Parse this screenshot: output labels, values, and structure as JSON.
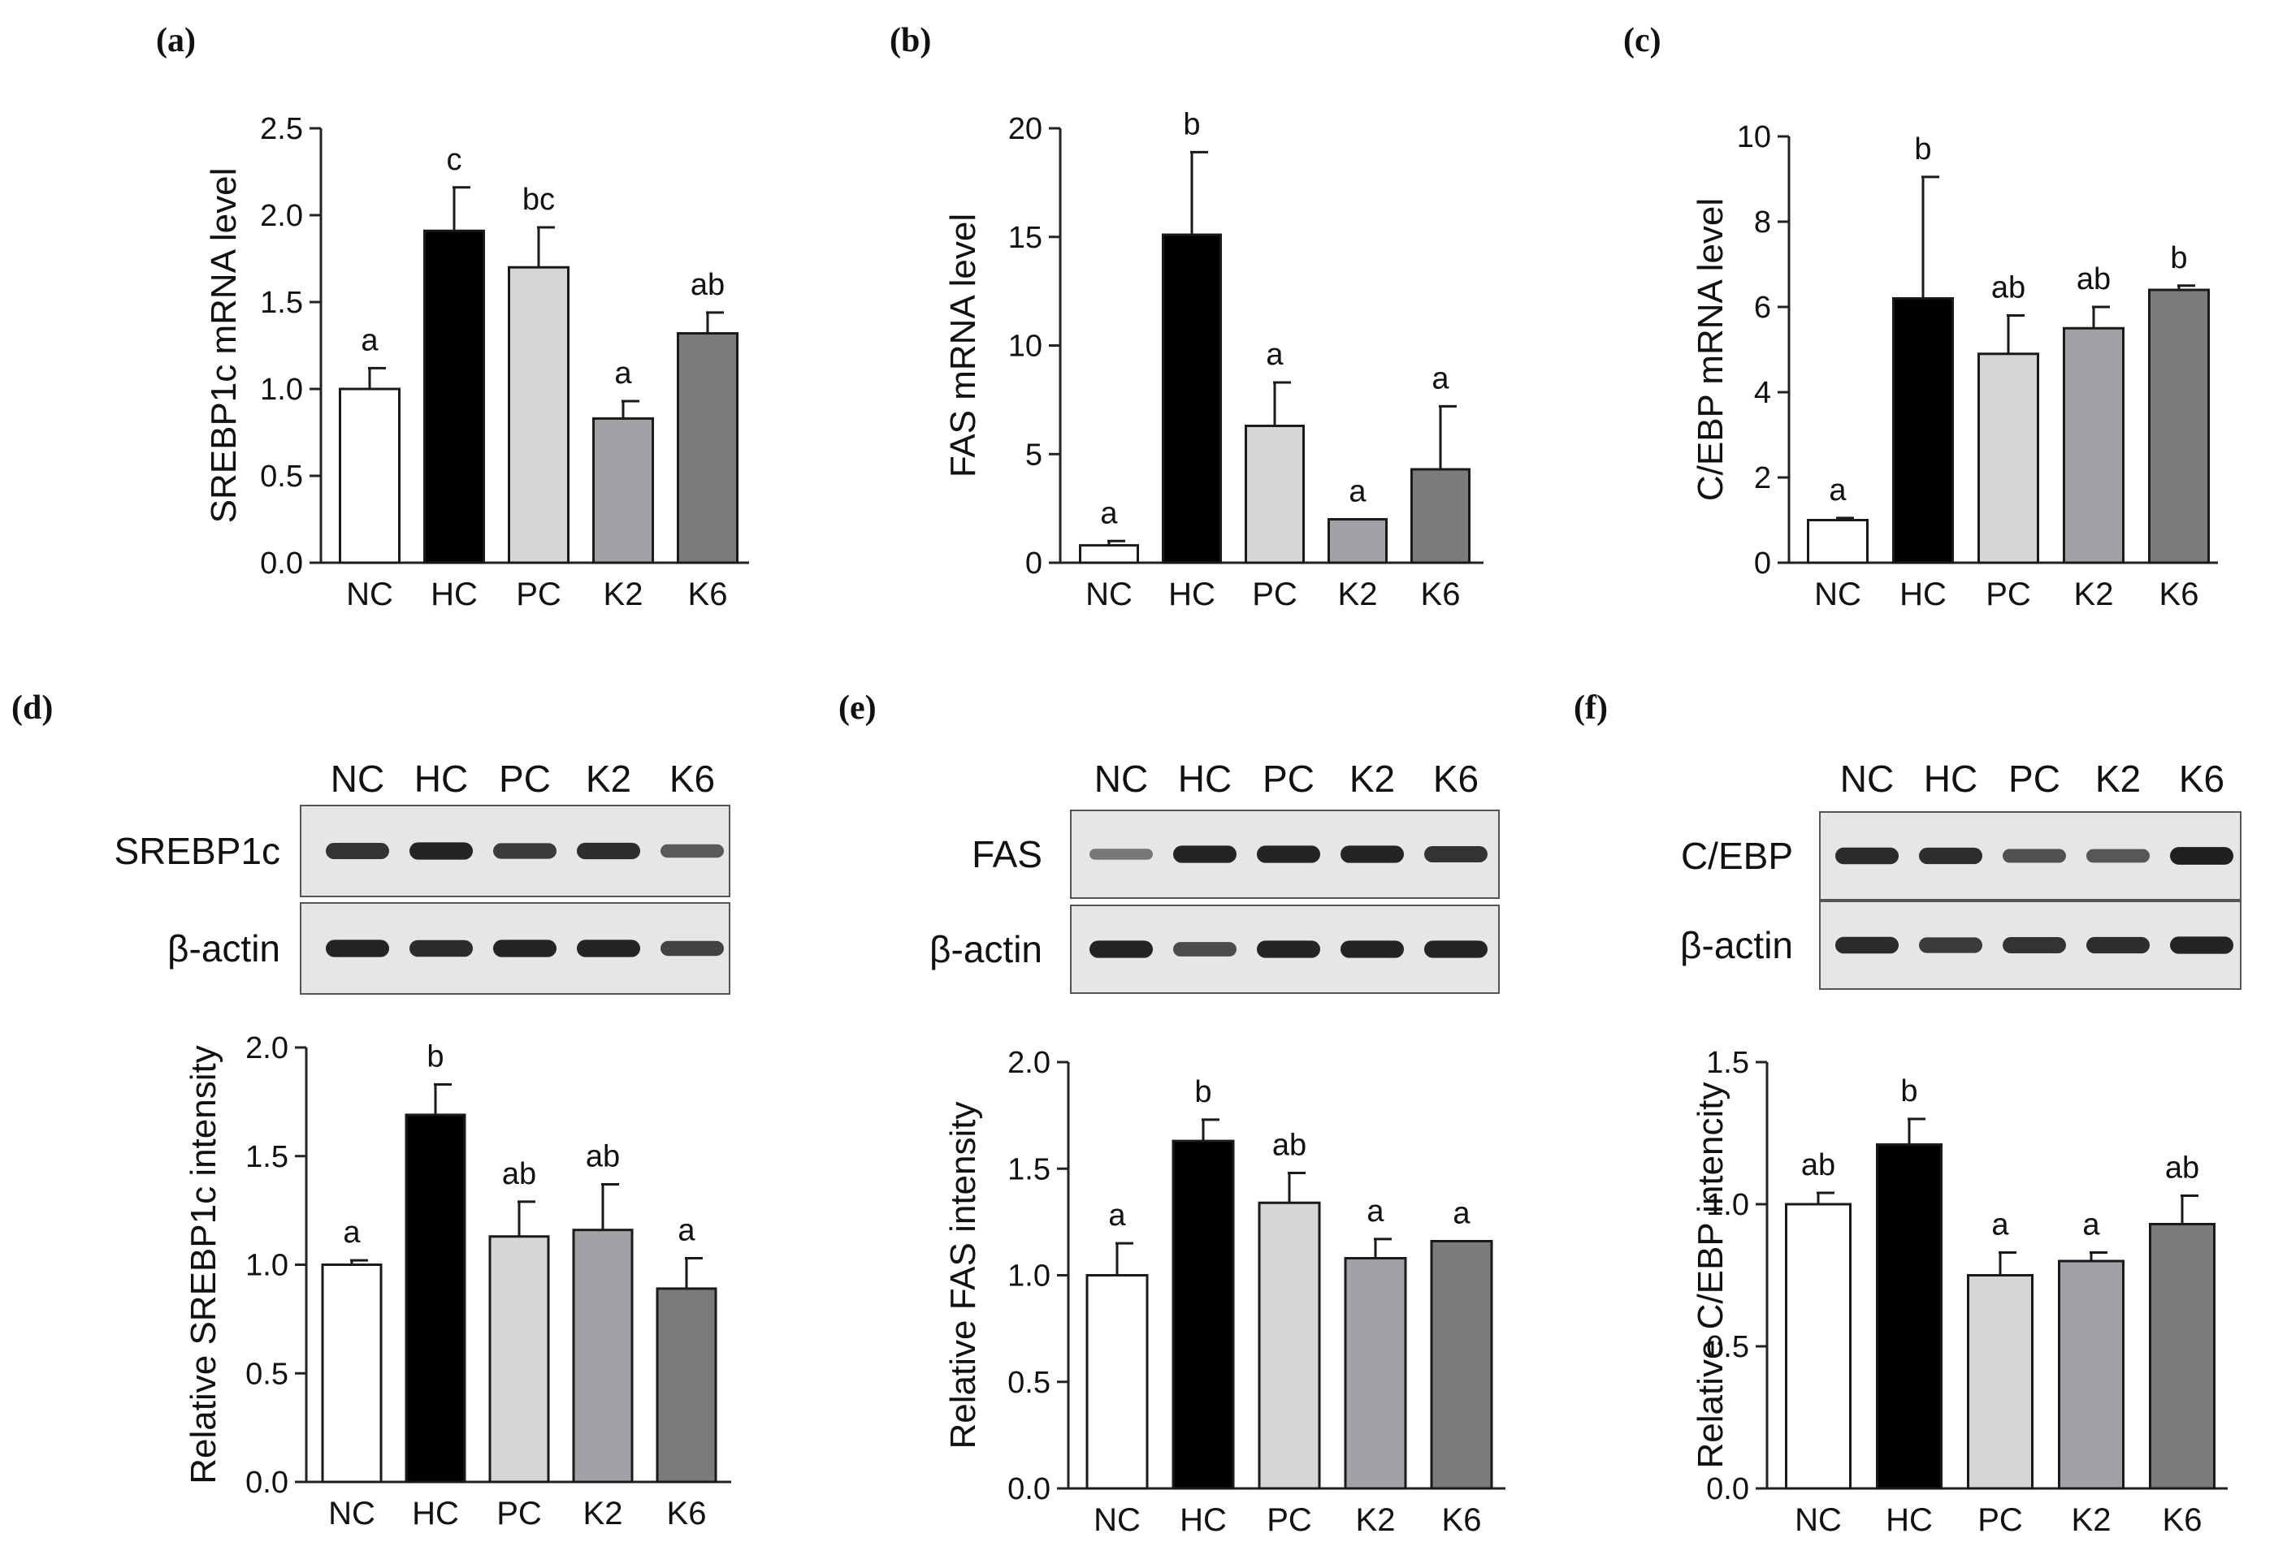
{
  "colors": {
    "NC": "#ffffff",
    "HC": "#000000",
    "PC": "#d6d6d6",
    "K2": "#a1a1a6",
    "K6": "#7b7b7b",
    "axis": "#222222",
    "blot_bg": "#e6e6e6",
    "band": "#1c1c1c"
  },
  "panels": [
    {
      "letter": "(a)"
    },
    {
      "letter": "(b)"
    },
    {
      "letter": "(c)"
    },
    {
      "letter": "(d)"
    },
    {
      "letter": "(e)"
    },
    {
      "letter": "(f)"
    }
  ],
  "blots": [
    {
      "categories": [
        "NC",
        "HC",
        "PC",
        "K2",
        "K6"
      ],
      "target_label": "SREBP1c",
      "control_label": "β-actin",
      "target_band_intensity": [
        0.85,
        0.95,
        0.8,
        0.88,
        0.6
      ],
      "control_band_intensity": [
        0.95,
        0.9,
        0.95,
        0.95,
        0.75
      ]
    },
    {
      "categories": [
        "NC",
        "HC",
        "PC",
        "K2",
        "K6"
      ],
      "target_label": "FAS",
      "control_label": "β-actin",
      "target_band_intensity": [
        0.4,
        0.95,
        0.95,
        0.95,
        0.85
      ],
      "control_band_intensity": [
        0.95,
        0.7,
        0.95,
        0.95,
        0.95
      ]
    },
    {
      "categories": [
        "NC",
        "HC",
        "PC",
        "K2",
        "K6"
      ],
      "target_label": "C/EBP",
      "control_label": "β-actin",
      "target_band_intensity": [
        0.9,
        0.88,
        0.65,
        0.62,
        0.98
      ],
      "control_band_intensity": [
        0.9,
        0.8,
        0.85,
        0.88,
        0.95
      ]
    }
  ],
  "chart_data": [
    {
      "type": "bar",
      "panel": "(a)",
      "title": "",
      "xlabel": "",
      "ylabel": "SREBP1c mRNA level",
      "categories": [
        "NC",
        "HC",
        "PC",
        "K2",
        "K6"
      ],
      "values": [
        1.0,
        1.91,
        1.7,
        0.83,
        1.32
      ],
      "errors": [
        0.12,
        0.25,
        0.23,
        0.1,
        0.12
      ],
      "significance": [
        "a",
        "c",
        "bc",
        "a",
        "ab"
      ],
      "ylim": [
        0,
        2.5
      ],
      "yticks": [
        0.0,
        0.5,
        1.0,
        1.5,
        2.0,
        2.5
      ],
      "yticklabels": [
        "0.0",
        "0.5",
        "1.0",
        "1.5",
        "2.0",
        "2.5"
      ]
    },
    {
      "type": "bar",
      "panel": "(b)",
      "title": "",
      "xlabel": "",
      "ylabel": "FAS mRNA level",
      "categories": [
        "NC",
        "HC",
        "PC",
        "K2",
        "K6"
      ],
      "values": [
        0.8,
        15.1,
        6.3,
        2.0,
        4.3
      ],
      "errors": [
        0.2,
        3.8,
        2.0,
        0.0,
        2.9
      ],
      "significance": [
        "a",
        "b",
        "a",
        "a",
        "a"
      ],
      "ylim": [
        0,
        20
      ],
      "yticks": [
        0,
        5,
        10,
        15,
        20
      ],
      "yticklabels": [
        "0",
        "5",
        "10",
        "15",
        "20"
      ]
    },
    {
      "type": "bar",
      "panel": "(c)",
      "title": "",
      "xlabel": "",
      "ylabel": "C/EBP mRNA level",
      "categories": [
        "NC",
        "HC",
        "PC",
        "K2",
        "K6"
      ],
      "values": [
        1.0,
        6.2,
        4.9,
        5.5,
        6.4
      ],
      "errors": [
        0.05,
        2.85,
        0.9,
        0.5,
        0.1
      ],
      "significance": [
        "a",
        "b",
        "ab",
        "ab",
        "b"
      ],
      "ylim": [
        0,
        10
      ],
      "yticks": [
        0,
        2,
        4,
        6,
        8,
        10
      ],
      "yticklabels": [
        "0",
        "2",
        "4",
        "6",
        "8",
        "10"
      ]
    },
    {
      "type": "bar",
      "panel": "(d)",
      "title": "",
      "xlabel": "",
      "ylabel": "Relative SREBP1c intensity",
      "categories": [
        "NC",
        "HC",
        "PC",
        "K2",
        "K6"
      ],
      "values": [
        1.0,
        1.69,
        1.13,
        1.16,
        0.89
      ],
      "errors": [
        0.02,
        0.14,
        0.16,
        0.21,
        0.14
      ],
      "significance": [
        "a",
        "b",
        "ab",
        "ab",
        "a"
      ],
      "ylim": [
        0,
        2.0
      ],
      "yticks": [
        0.0,
        0.5,
        1.0,
        1.5,
        2.0
      ],
      "yticklabels": [
        "0.0",
        "0.5",
        "1.0",
        "1.5",
        "2.0"
      ]
    },
    {
      "type": "bar",
      "panel": "(e)",
      "title": "",
      "xlabel": "",
      "ylabel": "Relative FAS intensity",
      "categories": [
        "NC",
        "HC",
        "PC",
        "K2",
        "K6"
      ],
      "values": [
        1.0,
        1.63,
        1.34,
        1.08,
        1.16
      ],
      "errors": [
        0.15,
        0.1,
        0.14,
        0.09,
        0.0
      ],
      "significance": [
        "a",
        "b",
        "ab",
        "a",
        "a"
      ],
      "ylim": [
        0,
        2.0
      ],
      "yticks": [
        0.0,
        0.5,
        1.0,
        1.5,
        2.0
      ],
      "yticklabels": [
        "0.0",
        "0.5",
        "1.0",
        "1.5",
        "2.0"
      ]
    },
    {
      "type": "bar",
      "panel": "(f)",
      "title": "",
      "xlabel": "",
      "ylabel": "Relative C/EBP intencity",
      "categories": [
        "NC",
        "HC",
        "PC",
        "K2",
        "K6"
      ],
      "values": [
        1.0,
        1.21,
        0.75,
        0.8,
        0.93
      ],
      "errors": [
        0.04,
        0.09,
        0.08,
        0.03,
        0.1
      ],
      "significance": [
        "ab",
        "b",
        "a",
        "a",
        "ab"
      ],
      "ylim": [
        0,
        1.5
      ],
      "yticks": [
        0.0,
        0.5,
        1.0,
        1.5
      ],
      "yticklabels": [
        "0.0",
        "0.5",
        "1.0",
        "1.5"
      ]
    }
  ]
}
